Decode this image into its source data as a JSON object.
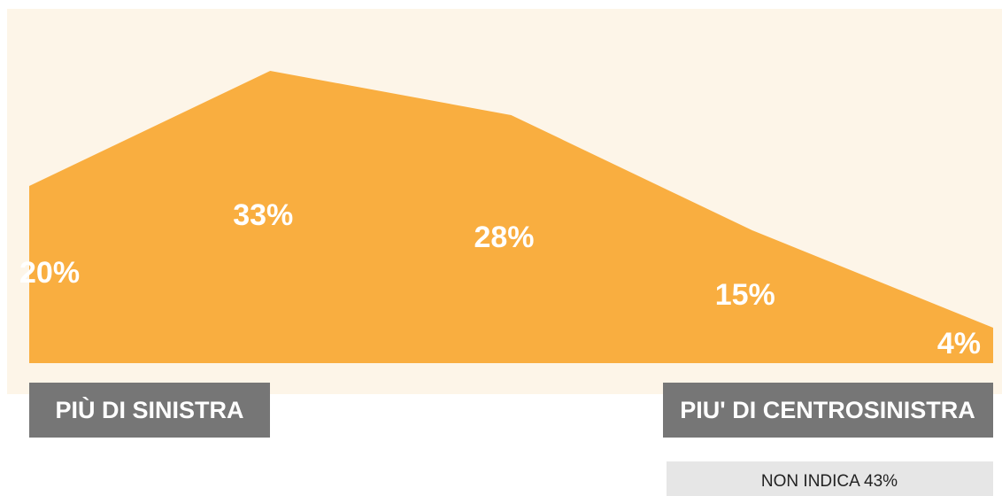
{
  "chart_data": {
    "type": "area",
    "categories": [
      null,
      null,
      null,
      null,
      null
    ],
    "values": [
      20,
      33,
      28,
      15,
      4
    ],
    "value_labels": [
      "20%",
      "33%",
      "28%",
      "15%",
      "4%"
    ],
    "color": "#f9ae40",
    "ylim": [
      0,
      40
    ],
    "left_label": "PIÙ DI SINISTRA",
    "right_label": "PIU' DI CENTROSINISTRA",
    "note": "NON INDICA 43%"
  }
}
